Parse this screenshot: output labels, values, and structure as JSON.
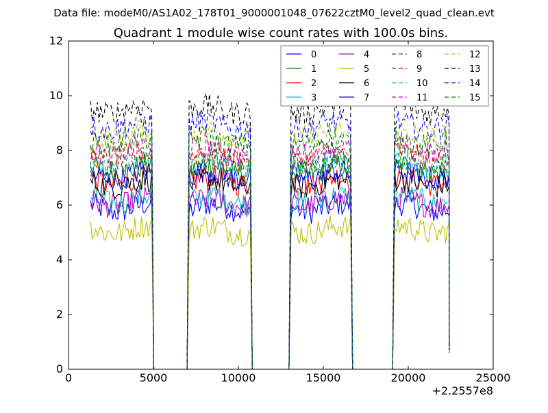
{
  "suptitle": "Data file: modeM0/AS1A02_178T01_9000001048_07622cztM0_level2_quad_clean.evt",
  "chart_data": {
    "type": "line",
    "title": "Quadrant 1 module wise count rates with 100.0s bins.",
    "xlabel": "",
    "ylabel": "",
    "x_offset_label": "+2.2557e8",
    "xlim": [
      0,
      25000
    ],
    "ylim": [
      0,
      12
    ],
    "xticks": [
      0,
      5000,
      10000,
      15000,
      20000,
      25000
    ],
    "yticks": [
      0,
      2,
      4,
      6,
      8,
      10,
      12
    ],
    "grid": false,
    "legend_position": "top-right",
    "legend_columns": 4,
    "bin_seconds": 100,
    "segments": [
      {
        "start": 1300,
        "end": 4900
      },
      {
        "start": 7100,
        "end": 10700
      },
      {
        "start": 13100,
        "end": 16600
      },
      {
        "start": 19200,
        "end": 22400
      }
    ],
    "series": [
      {
        "name": "0",
        "level": 5.9,
        "color": "#0000ff",
        "style": "solid"
      },
      {
        "name": "1",
        "level": 7.3,
        "color": "#008000",
        "style": "solid"
      },
      {
        "name": "2",
        "level": 6.9,
        "color": "#ff0000",
        "style": "solid"
      },
      {
        "name": "3",
        "level": 6.2,
        "color": "#00bfbf",
        "style": "solid"
      },
      {
        "name": "4",
        "level": 6.1,
        "color": "#bf00bf",
        "style": "solid"
      },
      {
        "name": "5",
        "level": 5.1,
        "color": "#bfbf00",
        "style": "solid"
      },
      {
        "name": "6",
        "level": 6.8,
        "color": "#000000",
        "style": "solid"
      },
      {
        "name": "7",
        "level": 7.1,
        "color": "#0000ff",
        "style": "solid"
      },
      {
        "name": "8",
        "level": 7.6,
        "color": "#008000",
        "style": "dashed"
      },
      {
        "name": "9",
        "level": 7.8,
        "color": "#ff0000",
        "style": "dashed"
      },
      {
        "name": "10",
        "level": 7.5,
        "color": "#00bfbf",
        "style": "dashed"
      },
      {
        "name": "11",
        "level": 8.0,
        "color": "#bf00bf",
        "style": "dashed"
      },
      {
        "name": "12",
        "level": 8.6,
        "color": "#bfbf00",
        "style": "dashed"
      },
      {
        "name": "13",
        "level": 9.5,
        "color": "#000000",
        "style": "dashed"
      },
      {
        "name": "14",
        "level": 8.9,
        "color": "#0000ff",
        "style": "dashed"
      },
      {
        "name": "15",
        "level": 8.3,
        "color": "#008000",
        "style": "dashed"
      }
    ]
  }
}
